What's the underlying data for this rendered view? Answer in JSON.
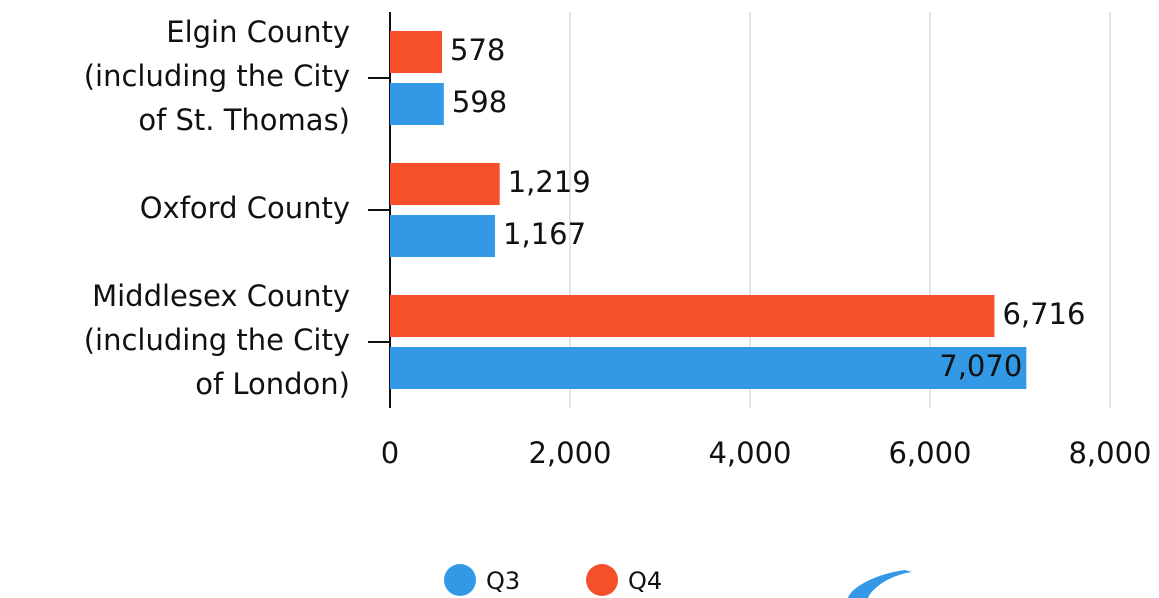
{
  "chart_data": {
    "type": "hbar",
    "categories": [
      "Elgin County (including the City of St. Thomas)",
      "Oxford County",
      "Middlesex County (including the City of London)"
    ],
    "series": [
      {
        "name": "Q4",
        "color": "#f5502a",
        "values": [
          578,
          1219,
          6716
        ],
        "value_labels": [
          "578",
          "1,219",
          "6,716"
        ]
      },
      {
        "name": "Q3",
        "color": "#3399e6",
        "values": [
          598,
          1167,
          7070
        ],
        "value_labels": [
          "598",
          "1,167",
          "7,070"
        ]
      }
    ],
    "legend_order": [
      "Q3",
      "Q4"
    ],
    "xlim": [
      0,
      8000
    ],
    "xticks": [
      0,
      {
        "value": 2000,
        "label": "2,000"
      },
      {
        "value": 4000,
        "label": "4,000"
      },
      {
        "value": 6000,
        "label": "6,000"
      },
      {
        "value": 8000,
        "label": "8,000"
      }
    ],
    "grid": true,
    "legend": "bottom"
  }
}
